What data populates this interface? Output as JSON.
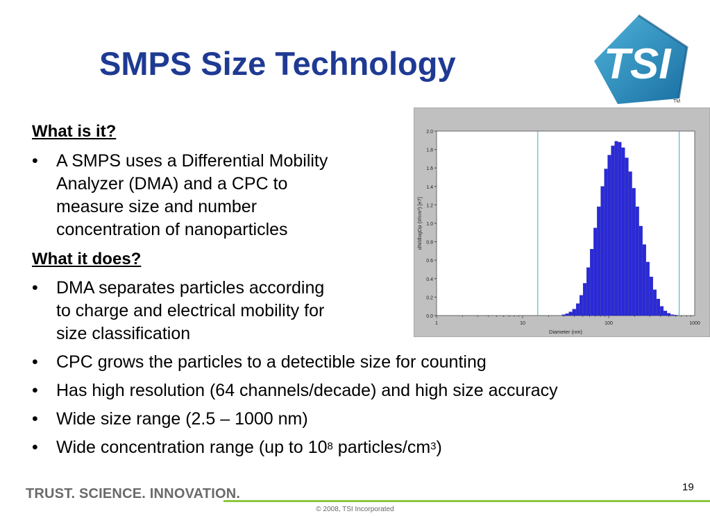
{
  "slide": {
    "title": "SMPS Size Technology",
    "heading1": "What is it?",
    "heading2": "What it does?",
    "bullets_top": [
      [
        "A SMPS uses a Differential Mobility",
        "Analyzer (DMA) and a CPC to",
        "measure size and number",
        "concentration of nanoparticles"
      ],
      [
        "DMA separates particles according",
        "to charge and electrical mobility for",
        "size classification"
      ]
    ],
    "bullets_bottom": [
      "CPC grows the particles to a detectible size for counting",
      "Has high resolution (64 channels/decade) and high size accuracy",
      "Wide size range (2.5 – 1000 nm)"
    ],
    "last_bullet": {
      "pre": "Wide concentration range (up to 10",
      "sup1": "8",
      "mid": " particles/cm",
      "sup2": "3",
      "post": ")"
    },
    "bullet_char": "•",
    "page_number": "19",
    "footer_tagline": "TRUST. SCIENCE. INNOVATION.",
    "copyright": "© 2008, TSI Incorporated",
    "logo_text": "TSI",
    "logo_tm": "TM"
  },
  "colors": {
    "title": "#1f3a93",
    "bars": "#2a2ad8",
    "cursor_lines": "#3aa9c9",
    "accent_green": "#8dc63f"
  },
  "chart_data": {
    "type": "bar",
    "xscale": "log",
    "xlim": [
      1,
      1000
    ],
    "ylim": [
      0,
      2.0
    ],
    "xlabel": "Diameter (nm)",
    "ylabel": "dN/dlogDp (#/cm³) [e7]",
    "xticks": [
      "1",
      "10",
      "100",
      "1000"
    ],
    "yticks": [
      "0.0",
      "0.2",
      "0.4",
      "0.6",
      "0.8",
      "1.0",
      "1.2",
      "1.4",
      "1.6",
      "1.8",
      "2.0"
    ],
    "cursor_lines_x": [
      15,
      660
    ],
    "x": [
      30,
      33,
      36,
      40,
      44,
      48,
      53,
      58,
      64,
      70,
      77,
      85,
      93,
      102,
      112,
      123,
      135,
      148,
      163,
      179,
      197,
      216,
      237,
      261,
      286,
      314,
      345,
      379,
      416,
      457,
      502,
      551,
      605
    ],
    "values": [
      0.01,
      0.02,
      0.04,
      0.07,
      0.13,
      0.22,
      0.35,
      0.52,
      0.72,
      0.95,
      1.18,
      1.4,
      1.59,
      1.74,
      1.84,
      1.89,
      1.88,
      1.82,
      1.71,
      1.56,
      1.38,
      1.18,
      0.97,
      0.77,
      0.58,
      0.42,
      0.28,
      0.18,
      0.1,
      0.05,
      0.025,
      0.01,
      0.005
    ]
  }
}
